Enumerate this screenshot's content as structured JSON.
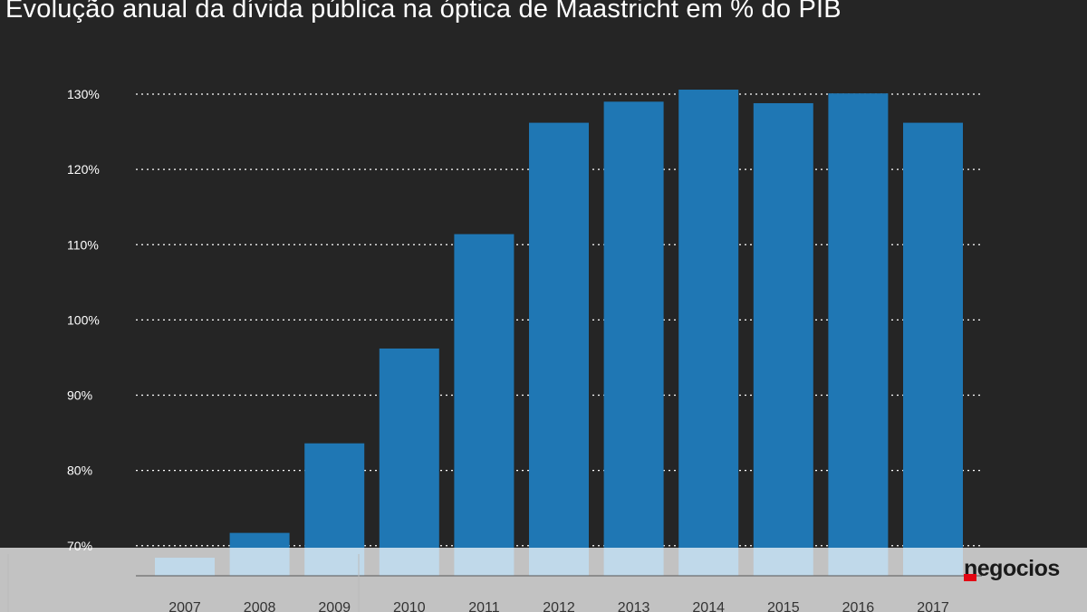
{
  "title": "Evolução anual da dívida pública na óptica de Maastricht em % do PIB",
  "brand": {
    "name": "negocios",
    "colors": {
      "background": "#252525",
      "bar": "#1f77b4",
      "overlay": "#ffffff",
      "logo_mark": "#e30613"
    }
  },
  "chart_data": {
    "type": "bar",
    "title": "Evolução anual da dívida pública na óptica de Maastricht em % do PIB",
    "xlabel": "",
    "ylabel": "",
    "categories": [
      "2007",
      "2008",
      "2009",
      "2010",
      "2011",
      "2012",
      "2013",
      "2014",
      "2015",
      "2016",
      "2017"
    ],
    "values": [
      68.4,
      71.7,
      83.6,
      96.2,
      111.4,
      126.2,
      129.0,
      130.6,
      128.8,
      130.1,
      126.2
    ],
    "ylim": [
      66,
      130
    ],
    "yticks": [
      70,
      80,
      90,
      100,
      110,
      120,
      130
    ],
    "ytick_labels": [
      "70%",
      "80%",
      "90%",
      "100%",
      "110%",
      "120%",
      "130%"
    ],
    "grid": "dotted-horizontal",
    "legend": "none"
  }
}
